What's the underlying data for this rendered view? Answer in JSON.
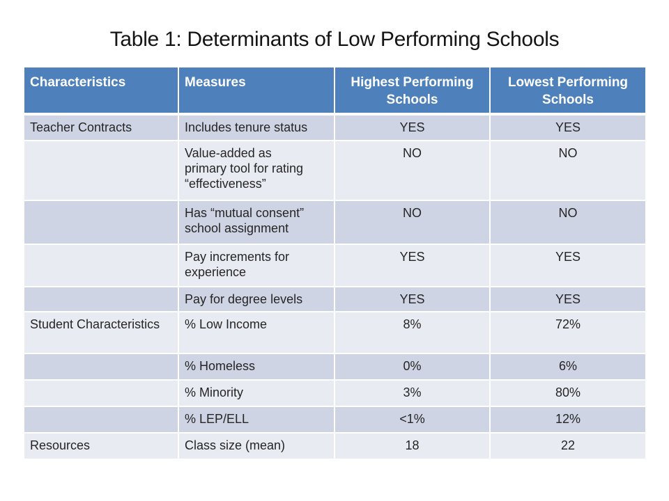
{
  "slide": {
    "title": "Table 1: Determinants of Low Performing Schools"
  },
  "colors": {
    "header_bg": "#4e80bc",
    "header_text": "#ffffff",
    "row_dark": "#cfd4e4",
    "row_light": "#e9ebf3",
    "body_text": "#252525",
    "title_text": "#141414",
    "background": "#ffffff"
  },
  "table": {
    "columns": [
      "Characteristics",
      "Measures",
      "Highest Performing Schools",
      "Lowest Performing Schools"
    ],
    "rows": [
      {
        "characteristic": "Teacher Contracts",
        "measure": "Includes tenure status",
        "highest": "YES",
        "lowest": "YES"
      },
      {
        "characteristic": "",
        "measure": "Value-added as\nprimary tool for rating\n“effectiveness”",
        "highest": "NO",
        "lowest": "NO"
      },
      {
        "characteristic": "",
        "measure": "Has “mutual consent”\nschool assignment",
        "highest": "NO",
        "lowest": "NO"
      },
      {
        "characteristic": "",
        "measure": "Pay increments for\nexperience",
        "highest": "YES",
        "lowest": "YES"
      },
      {
        "characteristic": "",
        "measure": "Pay for degree levels",
        "highest": "YES",
        "lowest": "YES"
      },
      {
        "characteristic": "Student Characteristics",
        "measure": "% Low Income",
        "highest": "8%",
        "lowest": "72%"
      },
      {
        "characteristic": "",
        "measure": "% Homeless",
        "highest": "0%",
        "lowest": "6%"
      },
      {
        "characteristic": "",
        "measure": "% Minority",
        "highest": "3%",
        "lowest": "80%"
      },
      {
        "characteristic": "",
        "measure": "% LEP/ELL",
        "highest": "<1%",
        "lowest": "12%"
      },
      {
        "characteristic": "Resources",
        "measure": "Class size (mean)",
        "highest": "18",
        "lowest": "22"
      }
    ]
  }
}
